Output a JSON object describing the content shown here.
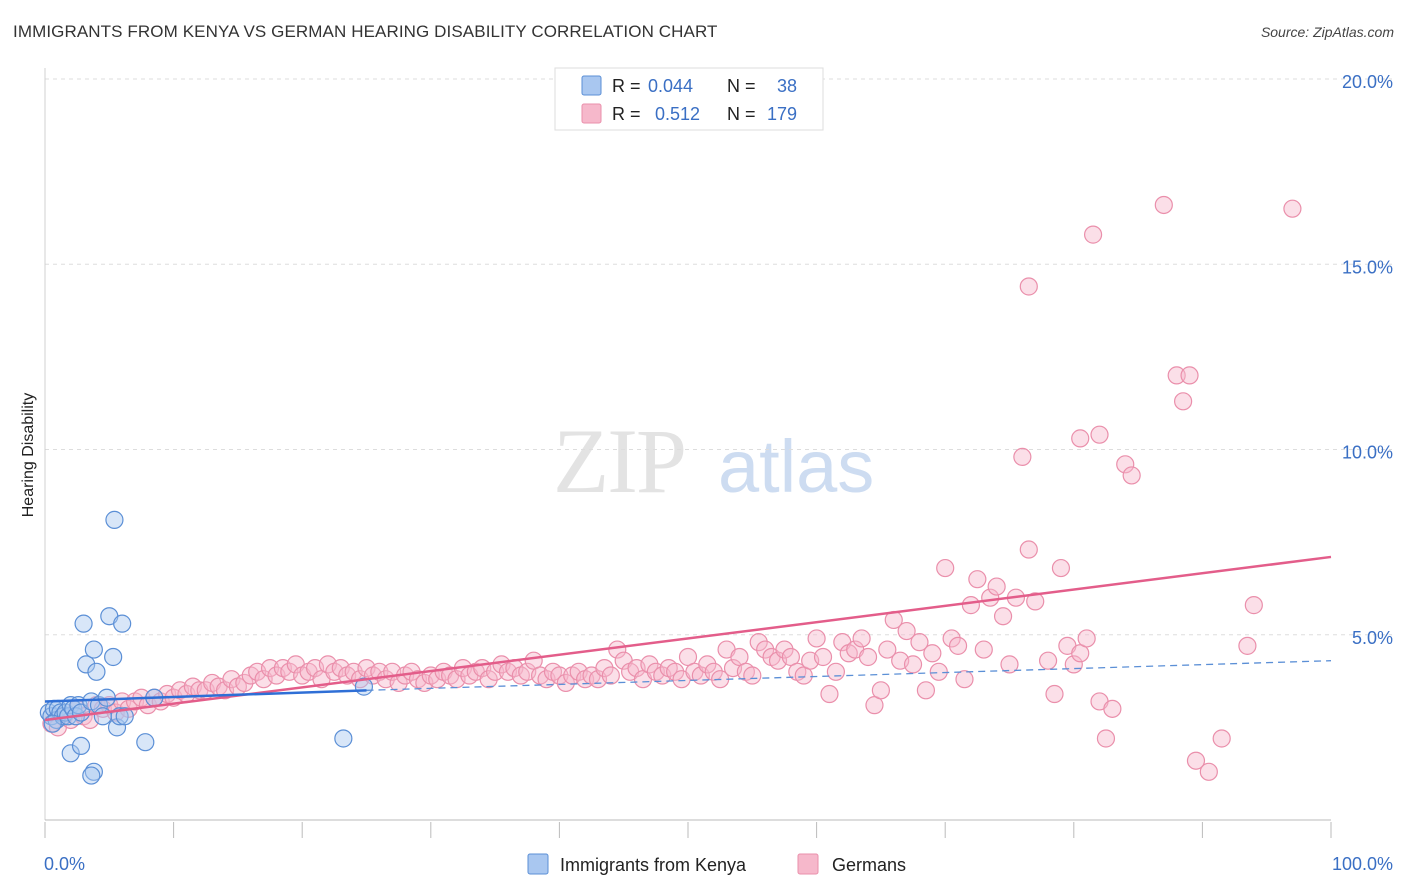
{
  "title": "IMMIGRANTS FROM KENYA VS GERMAN HEARING DISABILITY CORRELATION CHART",
  "source": "Source: ZipAtlas.com",
  "watermark": {
    "zip": "ZIP",
    "atlas": "atlas"
  },
  "colors": {
    "blue_fill": "#a9c7f0",
    "blue_stroke": "#5b8fd6",
    "blue_line": "#2f6fd6",
    "pink_fill": "#f6b8cb",
    "pink_stroke": "#ea8fab",
    "pink_line": "#e35d8a",
    "axis_text": "#3a6fc4",
    "grid": "#dddddd"
  },
  "legend": {
    "rows": [
      {
        "r_label": "R =",
        "r_value": "0.044",
        "n_label": "N =",
        "n_value": "38"
      },
      {
        "r_label": "R =",
        "r_value": "0.512",
        "n_label": "N =",
        "n_value": "179"
      }
    ]
  },
  "bottom_legend": [
    "Immigrants from Kenya",
    "Germans"
  ],
  "chart_data": {
    "type": "scatter",
    "xlabel": "",
    "ylabel": "Hearing Disability",
    "xlim": [
      0,
      100
    ],
    "ylim": [
      0,
      20
    ],
    "x_tick_labels": [
      "0.0%",
      "100.0%"
    ],
    "y_ticks": [
      5,
      10,
      15,
      20
    ],
    "y_tick_labels": [
      "5.0%",
      "10.0%",
      "15.0%",
      "20.0%"
    ],
    "series": [
      {
        "name": "Immigrants from Kenya",
        "R": 0.044,
        "N": 38,
        "trend_solid": [
          [
            0,
            3.2
          ],
          [
            25,
            3.5
          ]
        ],
        "trend_dashed": [
          [
            25,
            3.5
          ],
          [
            100,
            4.3
          ]
        ],
        "points": [
          [
            0.3,
            2.9
          ],
          [
            0.5,
            2.8
          ],
          [
            0.7,
            3.0
          ],
          [
            0.9,
            2.7
          ],
          [
            1.0,
            3.0
          ],
          [
            1.2,
            2.9
          ],
          [
            1.4,
            2.8
          ],
          [
            1.6,
            2.9
          ],
          [
            1.8,
            2.8
          ],
          [
            2.0,
            3.1
          ],
          [
            2.2,
            3.0
          ],
          [
            2.4,
            2.8
          ],
          [
            2.6,
            3.1
          ],
          [
            2.8,
            2.9
          ],
          [
            3.0,
            5.3
          ],
          [
            3.2,
            4.2
          ],
          [
            3.6,
            3.2
          ],
          [
            3.8,
            4.6
          ],
          [
            4.0,
            4.0
          ],
          [
            4.2,
            3.1
          ],
          [
            4.5,
            2.8
          ],
          [
            4.8,
            3.3
          ],
          [
            5.0,
            5.5
          ],
          [
            5.3,
            4.4
          ],
          [
            5.6,
            2.5
          ],
          [
            5.8,
            2.8
          ],
          [
            2.0,
            1.8
          ],
          [
            2.8,
            2.0
          ],
          [
            3.8,
            1.3
          ],
          [
            3.6,
            1.2
          ],
          [
            5.4,
            8.1
          ],
          [
            6.0,
            5.3
          ],
          [
            6.2,
            2.8
          ],
          [
            7.8,
            2.1
          ],
          [
            8.5,
            3.3
          ],
          [
            23.2,
            2.2
          ],
          [
            24.8,
            3.6
          ],
          [
            0.6,
            2.6
          ]
        ]
      },
      {
        "name": "Germans",
        "R": 0.512,
        "N": 179,
        "trend": [
          [
            0,
            2.7
          ],
          [
            100,
            7.1
          ]
        ],
        "points": [
          [
            0.5,
            2.6
          ],
          [
            1.0,
            2.5
          ],
          [
            1.5,
            2.8
          ],
          [
            2.0,
            2.7
          ],
          [
            2.5,
            3.0
          ],
          [
            3.0,
            2.8
          ],
          [
            3.5,
            2.7
          ],
          [
            4.0,
            3.1
          ],
          [
            4.5,
            3.0
          ],
          [
            5.0,
            3.1
          ],
          [
            5.5,
            2.9
          ],
          [
            6.0,
            3.2
          ],
          [
            6.5,
            3.0
          ],
          [
            7.0,
            3.2
          ],
          [
            7.5,
            3.3
          ],
          [
            8.0,
            3.1
          ],
          [
            8.5,
            3.3
          ],
          [
            9.0,
            3.2
          ],
          [
            9.5,
            3.4
          ],
          [
            10.0,
            3.3
          ],
          [
            10.5,
            3.5
          ],
          [
            11.0,
            3.4
          ],
          [
            11.5,
            3.6
          ],
          [
            12.0,
            3.5
          ],
          [
            12.5,
            3.5
          ],
          [
            13.0,
            3.7
          ],
          [
            13.5,
            3.6
          ],
          [
            14.0,
            3.5
          ],
          [
            14.5,
            3.8
          ],
          [
            15.0,
            3.6
          ],
          [
            15.5,
            3.7
          ],
          [
            16.0,
            3.9
          ],
          [
            16.5,
            4.0
          ],
          [
            17.0,
            3.8
          ],
          [
            17.5,
            4.1
          ],
          [
            18.0,
            3.9
          ],
          [
            18.5,
            4.1
          ],
          [
            19.0,
            4.0
          ],
          [
            19.5,
            4.2
          ],
          [
            20.0,
            3.9
          ],
          [
            20.5,
            4.0
          ],
          [
            21.0,
            4.1
          ],
          [
            21.5,
            3.8
          ],
          [
            22.0,
            4.2
          ],
          [
            22.5,
            4.0
          ],
          [
            23.0,
            4.1
          ],
          [
            23.5,
            3.9
          ],
          [
            24.0,
            4.0
          ],
          [
            24.5,
            3.8
          ],
          [
            25.0,
            4.1
          ],
          [
            25.5,
            3.9
          ],
          [
            26.0,
            4.0
          ],
          [
            26.5,
            3.8
          ],
          [
            27.0,
            4.0
          ],
          [
            27.5,
            3.7
          ],
          [
            28.0,
            3.9
          ],
          [
            28.5,
            4.0
          ],
          [
            29.0,
            3.8
          ],
          [
            29.5,
            3.7
          ],
          [
            30.0,
            3.9
          ],
          [
            30.5,
            3.8
          ],
          [
            31.0,
            4.0
          ],
          [
            31.5,
            3.9
          ],
          [
            32.0,
            3.8
          ],
          [
            32.5,
            4.1
          ],
          [
            33.0,
            3.9
          ],
          [
            33.5,
            4.0
          ],
          [
            34.0,
            4.1
          ],
          [
            34.5,
            3.8
          ],
          [
            35.0,
            4.0
          ],
          [
            35.5,
            4.2
          ],
          [
            36.0,
            4.0
          ],
          [
            36.5,
            4.1
          ],
          [
            37.0,
            3.9
          ],
          [
            37.5,
            4.0
          ],
          [
            38.0,
            4.3
          ],
          [
            38.5,
            3.9
          ],
          [
            39.0,
            3.8
          ],
          [
            39.5,
            4.0
          ],
          [
            40.0,
            3.9
          ],
          [
            40.5,
            3.7
          ],
          [
            41.0,
            3.9
          ],
          [
            41.5,
            4.0
          ],
          [
            42.0,
            3.8
          ],
          [
            42.5,
            3.9
          ],
          [
            43.0,
            3.8
          ],
          [
            43.5,
            4.1
          ],
          [
            44.0,
            3.9
          ],
          [
            44.5,
            4.6
          ],
          [
            45.0,
            4.3
          ],
          [
            45.5,
            4.0
          ],
          [
            46.0,
            4.1
          ],
          [
            46.5,
            3.8
          ],
          [
            47.0,
            4.2
          ],
          [
            47.5,
            4.0
          ],
          [
            48.0,
            3.9
          ],
          [
            48.5,
            4.1
          ],
          [
            49.0,
            4.0
          ],
          [
            49.5,
            3.8
          ],
          [
            50.0,
            4.4
          ],
          [
            50.5,
            4.0
          ],
          [
            51.0,
            3.9
          ],
          [
            51.5,
            4.2
          ],
          [
            52.0,
            4.0
          ],
          [
            52.5,
            3.8
          ],
          [
            53.0,
            4.6
          ],
          [
            53.5,
            4.1
          ],
          [
            54.0,
            4.4
          ],
          [
            54.5,
            4.0
          ],
          [
            55.0,
            3.9
          ],
          [
            55.5,
            4.8
          ],
          [
            56.0,
            4.6
          ],
          [
            56.5,
            4.4
          ],
          [
            57.0,
            4.3
          ],
          [
            57.5,
            4.6
          ],
          [
            58.0,
            4.4
          ],
          [
            58.5,
            4.0
          ],
          [
            59.0,
            3.9
          ],
          [
            59.5,
            4.3
          ],
          [
            60.0,
            4.9
          ],
          [
            60.5,
            4.4
          ],
          [
            61.0,
            3.4
          ],
          [
            61.5,
            4.0
          ],
          [
            62.0,
            4.8
          ],
          [
            62.5,
            4.5
          ],
          [
            63.0,
            4.6
          ],
          [
            63.5,
            4.9
          ],
          [
            64.0,
            4.4
          ],
          [
            64.5,
            3.1
          ],
          [
            65.0,
            3.5
          ],
          [
            65.5,
            4.6
          ],
          [
            66.0,
            5.4
          ],
          [
            66.5,
            4.3
          ],
          [
            67.0,
            5.1
          ],
          [
            67.5,
            4.2
          ],
          [
            68.0,
            4.8
          ],
          [
            68.5,
            3.5
          ],
          [
            69.0,
            4.5
          ],
          [
            69.5,
            4.0
          ],
          [
            70.0,
            6.8
          ],
          [
            70.5,
            4.9
          ],
          [
            71.0,
            4.7
          ],
          [
            71.5,
            3.8
          ],
          [
            72.0,
            5.8
          ],
          [
            72.5,
            6.5
          ],
          [
            73.0,
            4.6
          ],
          [
            73.5,
            6.0
          ],
          [
            74.0,
            6.3
          ],
          [
            74.5,
            5.5
          ],
          [
            75.0,
            4.2
          ],
          [
            75.5,
            6.0
          ],
          [
            76.0,
            9.8
          ],
          [
            76.5,
            7.3
          ],
          [
            77.0,
            5.9
          ],
          [
            78.0,
            4.3
          ],
          [
            78.5,
            3.4
          ],
          [
            79.0,
            6.8
          ],
          [
            79.5,
            4.7
          ],
          [
            80.0,
            4.2
          ],
          [
            80.5,
            4.5
          ],
          [
            81.0,
            4.9
          ],
          [
            81.5,
            15.8
          ],
          [
            82.0,
            3.2
          ],
          [
            82.5,
            2.2
          ],
          [
            83.0,
            3.0
          ],
          [
            84.0,
            9.6
          ],
          [
            84.5,
            9.3
          ],
          [
            87.0,
            16.6
          ],
          [
            88.0,
            12.0
          ],
          [
            89.0,
            12.0
          ],
          [
            88.5,
            11.3
          ],
          [
            89.5,
            1.6
          ],
          [
            90.5,
            1.3
          ],
          [
            91.5,
            2.2
          ],
          [
            97.0,
            16.5
          ],
          [
            93.5,
            4.7
          ],
          [
            94.0,
            5.8
          ],
          [
            76.5,
            14.4
          ],
          [
            80.5,
            10.3
          ],
          [
            82.0,
            10.4
          ]
        ]
      }
    ]
  }
}
